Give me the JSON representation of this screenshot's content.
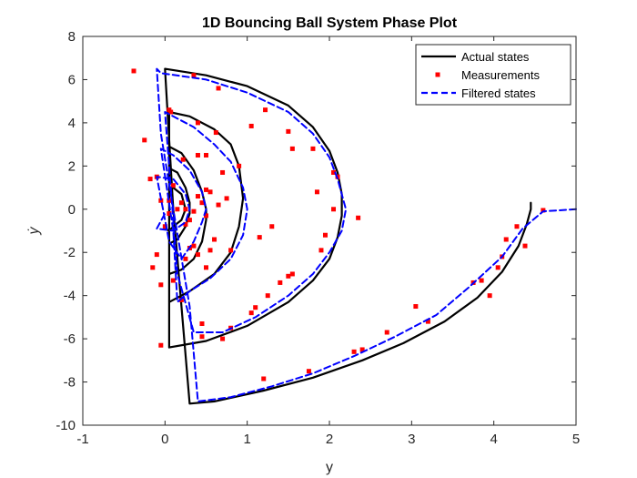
{
  "chart_data": {
    "type": "line",
    "title": "1D Bouncing Ball System Phase Plot",
    "xlabel": "y",
    "ylabel": "ẏ",
    "xlim": [
      -1,
      5
    ],
    "ylim": [
      -10,
      8
    ],
    "xticks": [
      -1,
      0,
      1,
      2,
      3,
      4,
      5
    ],
    "yticks": [
      -10,
      -8,
      -6,
      -4,
      -2,
      0,
      2,
      4,
      6,
      8
    ],
    "xtick_labels": [
      "-1",
      "0",
      "1",
      "2",
      "3",
      "4",
      "5"
    ],
    "ytick_labels": [
      "-10",
      "-8",
      "-6",
      "-4",
      "-2",
      "0",
      "2",
      "4",
      "6",
      "8"
    ],
    "grid": false,
    "legend_position": "top-right",
    "series": [
      {
        "name": "Actual states",
        "style": "solid",
        "color": "#000000",
        "x": [
          4.45,
          4.45,
          4.4,
          4.3,
          4.1,
          3.8,
          3.4,
          2.9,
          2.4,
          1.8,
          1.2,
          0.6,
          0.3,
          0.2,
          0.1,
          0.0,
          0.0,
          0.5,
          1.0,
          1.5,
          1.8,
          2.0,
          2.1,
          2.15,
          2.15,
          2.1,
          2.0,
          1.8,
          1.5,
          1.0,
          0.5,
          0.05,
          0.05,
          0.05,
          0.3,
          0.6,
          0.8,
          0.9,
          0.95,
          0.9,
          0.8,
          0.6,
          0.3,
          0.05,
          0.05,
          0.05,
          0.2,
          0.35,
          0.45,
          0.5,
          0.5,
          0.45,
          0.35,
          0.2,
          0.05,
          0.05,
          0.05,
          0.15,
          0.25,
          0.3,
          0.3,
          0.25,
          0.15,
          0.05,
          0.05,
          0.1,
          0.2,
          0.25,
          0.2,
          0.1,
          0.05,
          0.0
        ],
        "y": [
          0.3,
          0.0,
          -0.7,
          -1.7,
          -2.9,
          -4.1,
          -5.2,
          -6.2,
          -7.0,
          -7.8,
          -8.4,
          -8.9,
          -9.0,
          -4.5,
          0.0,
          6.5,
          6.5,
          6.2,
          5.7,
          4.8,
          3.8,
          2.7,
          1.7,
          0.7,
          -0.3,
          -1.3,
          -2.3,
          -3.3,
          -4.3,
          -5.4,
          -6.1,
          -6.4,
          -1.0,
          4.5,
          4.3,
          3.7,
          3.0,
          2.0,
          0.5,
          -0.8,
          -2.0,
          -3.0,
          -3.8,
          -4.3,
          -1.5,
          2.9,
          2.6,
          1.8,
          0.8,
          0.0,
          -0.5,
          -1.5,
          -2.3,
          -2.8,
          -3.0,
          -1.0,
          1.9,
          1.7,
          1.0,
          0.3,
          -0.2,
          -0.8,
          -1.4,
          -1.6,
          0.9,
          1.0,
          0.7,
          0.0,
          -0.5,
          -0.8,
          -1.0,
          -0.9
        ]
      },
      {
        "name": "Measurements",
        "style": "markers",
        "color": "#ff0000",
        "x": [
          -0.38,
          0.35,
          0.05,
          0.65,
          1.22,
          1.05,
          0.62,
          0.07,
          1.5,
          1.55,
          1.8,
          2.05,
          2.1,
          0.22,
          0.4,
          0.5,
          0.9,
          1.3,
          2.05,
          1.85,
          2.35,
          1.95,
          1.9,
          1.55,
          1.5,
          1.4,
          1.25,
          1.1,
          1.05,
          0.8,
          0.7,
          0.45,
          0.2,
          0.1,
          -0.05,
          -0.1,
          -0.15,
          -0.25,
          -0.05,
          -0.1,
          -0.18,
          -0.05,
          0.05,
          0.15,
          0.25,
          0.3,
          0.4,
          0.5,
          0.55,
          0.75,
          0.45,
          0.35,
          0.5,
          0.55,
          0.25,
          0.3,
          0.5,
          1.15,
          0.8,
          0.4,
          0.6,
          0.7,
          0.65,
          0.4,
          0.35,
          0.25,
          0.1,
          0.2,
          0.0,
          0.05,
          0.45,
          1.2,
          1.75,
          2.3,
          2.4,
          2.7,
          3.05,
          3.2,
          3.75,
          3.85,
          3.95,
          4.05,
          4.1,
          4.15,
          4.28,
          4.38,
          4.6
        ],
        "y": [
          6.4,
          6.2,
          4.6,
          5.6,
          4.6,
          3.85,
          3.55,
          4.5,
          3.6,
          2.8,
          2.8,
          1.7,
          1.5,
          2.3,
          2.5,
          2.5,
          2.0,
          -0.8,
          0.0,
          0.8,
          -0.4,
          -1.2,
          -1.9,
          -3.0,
          -3.1,
          -3.4,
          -4.0,
          -4.55,
          -4.8,
          -5.5,
          -6.0,
          -5.3,
          -4.2,
          -3.3,
          -3.5,
          -2.1,
          -2.7,
          3.2,
          -6.3,
          1.5,
          1.4,
          0.4,
          0.4,
          0.0,
          0.0,
          -0.5,
          0.6,
          -0.3,
          -1.9,
          0.5,
          0.3,
          -0.1,
          0.9,
          0.8,
          -0.7,
          -1.8,
          -2.7,
          -1.3,
          -1.9,
          -2.1,
          -1.4,
          1.7,
          0.2,
          4.0,
          -1.7,
          -2.3,
          1.1,
          0.3,
          -0.8,
          -0.2,
          -5.9,
          -7.85,
          -7.5,
          -6.6,
          -6.5,
          -5.7,
          -4.5,
          -5.2,
          -3.4,
          -3.3,
          -4.0,
          -2.7,
          -2.2,
          -1.4,
          -0.8,
          -1.7,
          -0.05
        ]
      },
      {
        "name": "Filtered states",
        "style": "dashed",
        "color": "#0000ff",
        "x": [
          5.0,
          4.6,
          4.35,
          4.1,
          3.7,
          3.3,
          2.8,
          2.3,
          1.8,
          1.3,
          0.8,
          0.4,
          0.3,
          0.1,
          -0.05,
          -0.1,
          -0.05,
          0.5,
          1.0,
          1.5,
          1.8,
          2.0,
          2.1,
          2.2,
          2.15,
          2.0,
          1.8,
          1.5,
          1.1,
          0.7,
          0.35,
          0.15,
          0.0,
          0.1,
          0.35,
          0.6,
          0.8,
          0.95,
          1.0,
          0.95,
          0.8,
          0.55,
          0.3,
          0.15,
          0.1,
          -0.05,
          0.1,
          0.3,
          0.45,
          0.5,
          0.45,
          0.35,
          0.2,
          0.05,
          -0.1,
          0.1,
          0.25,
          0.3,
          0.25,
          0.1,
          -0.1,
          0.0
        ],
        "y": [
          0.0,
          -0.1,
          -0.9,
          -2.2,
          -3.6,
          -4.9,
          -5.9,
          -6.8,
          -7.6,
          -8.2,
          -8.7,
          -8.9,
          -4.5,
          0.0,
          3.5,
          6.5,
          6.3,
          6.0,
          5.4,
          4.5,
          3.5,
          2.4,
          1.4,
          0.0,
          -1.0,
          -2.0,
          -3.0,
          -4.0,
          -5.0,
          -5.7,
          -5.7,
          -3.0,
          4.5,
          4.3,
          3.8,
          3.0,
          2.2,
          1.0,
          0.0,
          -1.2,
          -2.3,
          -3.2,
          -3.8,
          -4.3,
          -1.0,
          2.8,
          2.5,
          1.8,
          0.8,
          0.0,
          -0.6,
          -1.5,
          -2.3,
          -1.5,
          1.5,
          1.4,
          0.7,
          0.0,
          -0.6,
          -1.0,
          -0.9,
          -0.2
        ]
      }
    ]
  }
}
